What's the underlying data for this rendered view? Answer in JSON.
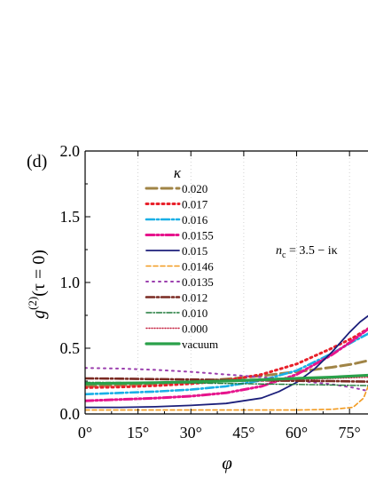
{
  "chart_data": {
    "type": "line",
    "panel_label": "(d)",
    "xlabel": "φ",
    "ylabel": "g(2)(τ = 0)",
    "ylabel_parts": {
      "base": "g",
      "sup": "(2)",
      "arg": "(τ = 0)"
    },
    "xlim": [
      0,
      81
    ],
    "ylim": [
      0,
      2.0
    ],
    "x_ticks": [
      0,
      15,
      30,
      45,
      60,
      75
    ],
    "x_tick_labels": [
      "0°",
      "15°",
      "30°",
      "45°",
      "60°",
      "75°"
    ],
    "y_ticks": [
      0,
      0.5,
      1.0,
      1.5,
      2.0
    ],
    "y_tick_labels": [
      "0.0",
      "0.5",
      "1.0",
      "1.5",
      "2.0"
    ],
    "grid": "vertical dotted at x ticks",
    "legend_title": "κ",
    "legend_position": "upper-left",
    "annotation": {
      "text_main": "n",
      "text_sub": "c",
      "text_rest": " = 3.5 − iκ"
    },
    "series": [
      {
        "name": "0.020",
        "color": "#a08446",
        "dash": "long-dash",
        "points": [
          [
            0,
            0.21
          ],
          [
            10,
            0.22
          ],
          [
            20,
            0.23
          ],
          [
            30,
            0.245
          ],
          [
            40,
            0.265
          ],
          [
            50,
            0.29
          ],
          [
            60,
            0.32
          ],
          [
            70,
            0.355
          ],
          [
            76,
            0.38
          ],
          [
            81,
            0.41
          ]
        ]
      },
      {
        "name": "0.017",
        "color": "#e8202a",
        "dash": "dot",
        "points": [
          [
            0,
            0.2
          ],
          [
            10,
            0.205
          ],
          [
            20,
            0.215
          ],
          [
            30,
            0.23
          ],
          [
            40,
            0.255
          ],
          [
            50,
            0.3
          ],
          [
            60,
            0.38
          ],
          [
            70,
            0.5
          ],
          [
            76,
            0.58
          ],
          [
            81,
            0.66
          ]
        ]
      },
      {
        "name": "0.016",
        "color": "#1aafe6",
        "dash": "dash-dot",
        "points": [
          [
            0,
            0.15
          ],
          [
            10,
            0.16
          ],
          [
            20,
            0.17
          ],
          [
            30,
            0.185
          ],
          [
            40,
            0.21
          ],
          [
            50,
            0.255
          ],
          [
            60,
            0.33
          ],
          [
            70,
            0.46
          ],
          [
            76,
            0.55
          ],
          [
            81,
            0.62
          ]
        ]
      },
      {
        "name": "0.0155",
        "color": "#e6148c",
        "dash": "dash-dot-dot",
        "points": [
          [
            0,
            0.1
          ],
          [
            10,
            0.11
          ],
          [
            20,
            0.12
          ],
          [
            30,
            0.135
          ],
          [
            40,
            0.16
          ],
          [
            50,
            0.21
          ],
          [
            60,
            0.3
          ],
          [
            70,
            0.45
          ],
          [
            76,
            0.56
          ],
          [
            81,
            0.66
          ]
        ]
      },
      {
        "name": "0.015",
        "color": "#1c1f7a",
        "dash": "solid",
        "points": [
          [
            0,
            0.05
          ],
          [
            10,
            0.05
          ],
          [
            20,
            0.055
          ],
          [
            30,
            0.065
          ],
          [
            40,
            0.08
          ],
          [
            50,
            0.12
          ],
          [
            55,
            0.17
          ],
          [
            60,
            0.24
          ],
          [
            65,
            0.34
          ],
          [
            70,
            0.47
          ],
          [
            75,
            0.62
          ],
          [
            78,
            0.7
          ],
          [
            81,
            0.76
          ]
        ]
      },
      {
        "name": "0.0146",
        "color": "#f29a1f",
        "dash": "short-dash",
        "points": [
          [
            0,
            0.03
          ],
          [
            15,
            0.03
          ],
          [
            30,
            0.03
          ],
          [
            45,
            0.03
          ],
          [
            60,
            0.03
          ],
          [
            70,
            0.035
          ],
          [
            76,
            0.05
          ],
          [
            79,
            0.12
          ],
          [
            81,
            0.26
          ]
        ]
      },
      {
        "name": "0.0135",
        "color": "#9b3fae",
        "dash": "dot-sparse",
        "points": [
          [
            0,
            0.35
          ],
          [
            10,
            0.345
          ],
          [
            20,
            0.335
          ],
          [
            30,
            0.32
          ],
          [
            40,
            0.3
          ],
          [
            50,
            0.28
          ],
          [
            60,
            0.255
          ],
          [
            70,
            0.225
          ],
          [
            76,
            0.2
          ],
          [
            81,
            0.17
          ]
        ]
      },
      {
        "name": "0.012",
        "color": "#7a2a22",
        "dash": "dash-dot",
        "points": [
          [
            0,
            0.27
          ],
          [
            10,
            0.268
          ],
          [
            20,
            0.265
          ],
          [
            30,
            0.262
          ],
          [
            40,
            0.258
          ],
          [
            50,
            0.255
          ],
          [
            60,
            0.252
          ],
          [
            70,
            0.25
          ],
          [
            81,
            0.245
          ]
        ]
      },
      {
        "name": "0.010",
        "color": "#1f7a3a",
        "dash": "dash-dot-fine",
        "points": [
          [
            0,
            0.24
          ],
          [
            10,
            0.24
          ],
          [
            20,
            0.238
          ],
          [
            30,
            0.235
          ],
          [
            40,
            0.232
          ],
          [
            50,
            0.228
          ],
          [
            60,
            0.224
          ],
          [
            70,
            0.22
          ],
          [
            81,
            0.215
          ]
        ]
      },
      {
        "name": "0.000",
        "color": "#c21a3a",
        "dash": "fine-dot",
        "points": [
          [
            0,
            0.23
          ],
          [
            20,
            0.235
          ],
          [
            40,
            0.245
          ],
          [
            60,
            0.26
          ],
          [
            70,
            0.27
          ],
          [
            81,
            0.28
          ]
        ]
      },
      {
        "name": "vacuum",
        "color": "#2aa14a",
        "dash": "solid-thick",
        "points": [
          [
            0,
            0.23
          ],
          [
            20,
            0.238
          ],
          [
            40,
            0.25
          ],
          [
            60,
            0.27
          ],
          [
            70,
            0.28
          ],
          [
            81,
            0.295
          ]
        ]
      }
    ]
  }
}
